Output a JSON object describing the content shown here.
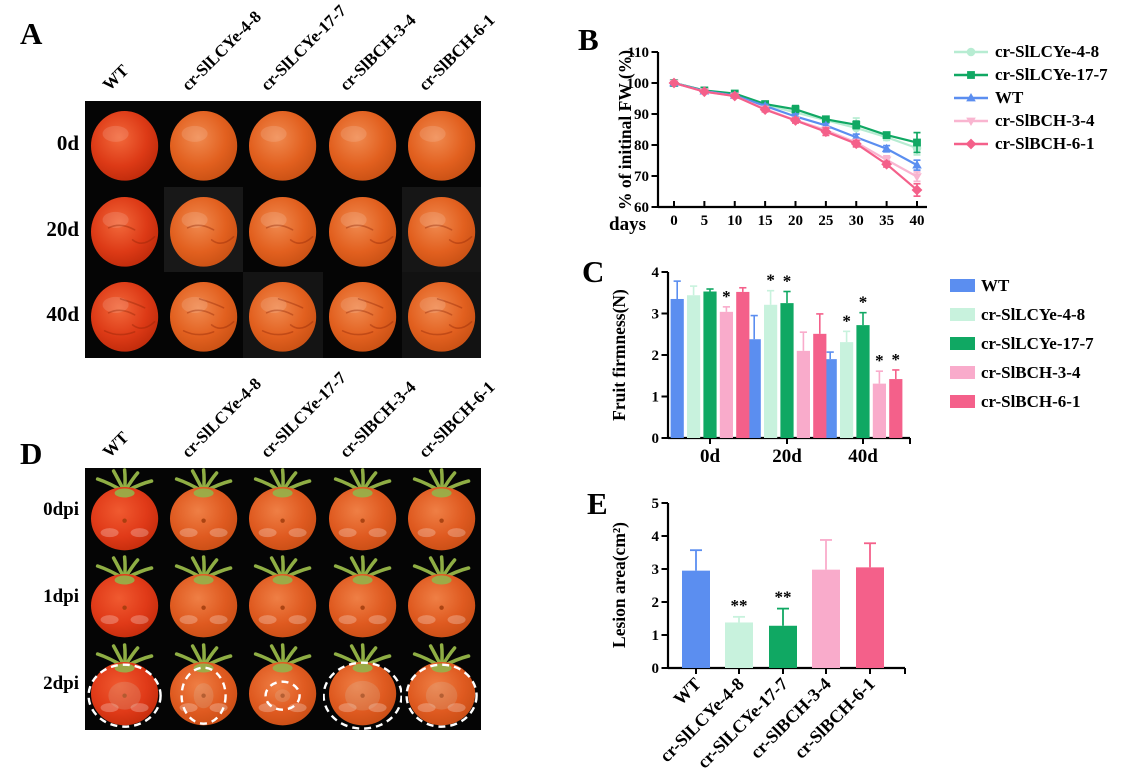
{
  "genotypes": [
    "WT",
    "cr-SlLCYe-4-8",
    "cr-SlLCYe-17-7",
    "cr-SlBCH-3-4",
    "cr-SlBCH-6-1"
  ],
  "panel_a": {
    "label": "A",
    "row_labels": [
      "0d",
      "20d",
      "40d"
    ]
  },
  "panel_b": {
    "label": "B"
  },
  "panel_c": {
    "label": "C"
  },
  "panel_d": {
    "label": "D",
    "row_labels": [
      "0dpi",
      "1dpi",
      "2dpi"
    ]
  },
  "panel_e": {
    "label": "E"
  },
  "colors": {
    "wt_blue": "#5b8ef0",
    "lcye48_mint_line": "#b7ecd2",
    "lcye48_mint_bar": "#c8f2dd",
    "lcye177_green": "#10a863",
    "bch34_pink_line": "#f9b5d0",
    "bch34_pink_bar": "#f9abcb",
    "bch61_rose": "#f4608a",
    "photo_background": "#050505",
    "lesion_circle": "#ffffff"
  },
  "chart_data": [
    {
      "id": "panel_b_chart",
      "type": "line",
      "title": "",
      "xlabel": "days",
      "ylabel": "% of initinal FW (%)",
      "x": [
        0,
        5,
        10,
        15,
        20,
        25,
        30,
        35,
        40
      ],
      "ylim": [
        60,
        110
      ],
      "yticks": [
        60,
        70,
        80,
        90,
        100,
        110
      ],
      "grid": false,
      "legend_position": "right",
      "series": [
        {
          "name": "cr-SlLCYe-4-8",
          "marker": "circle",
          "color": "#b7ecd2",
          "values": [
            100,
            97.5,
            96.2,
            93.0,
            90.5,
            88.0,
            85.5,
            82.5,
            79.0
          ],
          "errors": [
            0,
            0.5,
            0.8,
            0.6,
            1.0,
            0.8,
            3.2,
            1.0,
            2.2
          ]
        },
        {
          "name": "cr-SlLCYe-17-7",
          "marker": "square",
          "color": "#10a863",
          "values": [
            100,
            97.6,
            96.6,
            93.2,
            91.5,
            88.3,
            86.5,
            83.2,
            80.8
          ],
          "errors": [
            0,
            0.5,
            0.9,
            0.6,
            1.2,
            0.6,
            1.2,
            0.8,
            3.2
          ]
        },
        {
          "name": "WT",
          "marker": "triangle-up",
          "color": "#5b8ef0",
          "values": [
            100,
            97.4,
            96.0,
            92.6,
            89.2,
            86.3,
            82.5,
            78.8,
            73.5
          ],
          "errors": [
            0,
            0.4,
            0.7,
            0.5,
            0.8,
            0.6,
            1.0,
            1.0,
            1.6
          ]
        },
        {
          "name": "cr-SlBCH-3-4",
          "marker": "triangle-down",
          "color": "#f9b5d0",
          "values": [
            100,
            97.2,
            95.8,
            91.6,
            88.0,
            84.8,
            80.8,
            75.2,
            69.8
          ],
          "errors": [
            0,
            0.5,
            0.6,
            0.8,
            0.8,
            1.0,
            1.0,
            1.3,
            1.5
          ]
        },
        {
          "name": "cr-SlBCH-6-1",
          "marker": "diamond",
          "color": "#f4608a",
          "values": [
            100,
            97.2,
            95.8,
            91.4,
            87.9,
            84.3,
            80.4,
            73.8,
            65.5
          ],
          "errors": [
            0,
            0.4,
            0.6,
            0.7,
            0.8,
            1.2,
            1.0,
            0.9,
            2.0
          ]
        }
      ]
    },
    {
      "id": "panel_c_chart",
      "type": "bar",
      "title": "",
      "xlabel": "",
      "ylabel": "Fruit firmness(N)",
      "categories": [
        "0d",
        "20d",
        "40d"
      ],
      "ylim": [
        0,
        4
      ],
      "yticks": [
        0,
        1,
        2,
        3,
        4
      ],
      "grid": false,
      "legend_position": "right",
      "series": [
        {
          "name": "WT",
          "color": "#5b8ef0",
          "values": [
            3.35,
            2.38,
            1.9
          ],
          "errors": [
            0.43,
            0.57,
            0.17
          ],
          "sig": [
            "",
            "",
            ""
          ]
        },
        {
          "name": "cr-SlLCYe-4-8",
          "color": "#c8f2dd",
          "values": [
            3.44,
            3.21,
            2.31
          ],
          "errors": [
            0.22,
            0.34,
            0.26
          ],
          "sig": [
            "",
            "*",
            "*"
          ]
        },
        {
          "name": "cr-SlLCYe-17-7",
          "color": "#10a863",
          "values": [
            3.53,
            3.25,
            2.72
          ],
          "errors": [
            0.06,
            0.28,
            0.3
          ],
          "sig": [
            "",
            "*",
            "*"
          ]
        },
        {
          "name": "cr-SlBCH-3-4",
          "color": "#f9abcb",
          "values": [
            3.04,
            2.1,
            1.31
          ],
          "errors": [
            0.12,
            0.45,
            0.3
          ],
          "sig": [
            "*",
            "",
            "*"
          ]
        },
        {
          "name": "cr-SlBCH-6-1",
          "color": "#f4608a",
          "values": [
            3.52,
            2.51,
            1.42
          ],
          "errors": [
            0.1,
            0.48,
            0.22
          ],
          "sig": [
            "",
            "",
            "*"
          ]
        }
      ]
    },
    {
      "id": "panel_e_chart",
      "type": "bar",
      "title": "",
      "xlabel": "",
      "ylabel": "Lesion area(cm²)",
      "categories": [
        "WT",
        "cr-SlLCYe-4-8",
        "cr-SlLCYe-17-7",
        "cr-SlBCH-3-4",
        "cr-SlBCH-6-1"
      ],
      "ylim": [
        0,
        5
      ],
      "yticks": [
        0,
        1,
        2,
        3,
        4,
        5
      ],
      "grid": false,
      "rotated_labels": true,
      "values": [
        2.95,
        1.38,
        1.28,
        2.98,
        3.05
      ],
      "errors": [
        0.62,
        0.17,
        0.52,
        0.9,
        0.73
      ],
      "sig": [
        "",
        "**",
        "**",
        "",
        ""
      ],
      "colors": [
        "#5b8ef0",
        "#c8f2dd",
        "#10a863",
        "#f9abcb",
        "#f4608a"
      ]
    }
  ]
}
